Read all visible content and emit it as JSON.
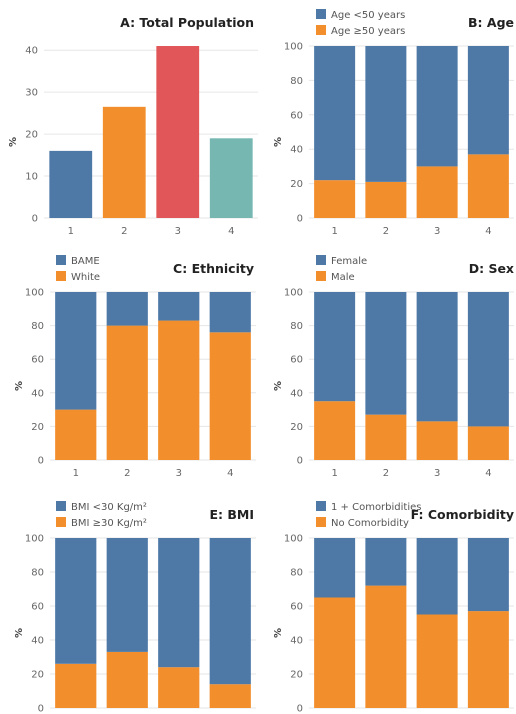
{
  "colors": {
    "blue": "#4e79a7",
    "orange": "#f28e2b",
    "red": "#e15759",
    "teal": "#76b7b2"
  },
  "chart_data": [
    {
      "id": "A",
      "type": "bar",
      "title": "A:  Total Population",
      "ylabel": "%",
      "categories": [
        "1",
        "2",
        "3",
        "4"
      ],
      "values": [
        16,
        26.5,
        41,
        19
      ],
      "bar_colors": [
        "#4e79a7",
        "#f28e2b",
        "#e15759",
        "#76b7b2"
      ],
      "ylim": [
        0,
        41
      ],
      "yticks": [
        0,
        10,
        20,
        30,
        40
      ]
    },
    {
      "id": "B",
      "type": "bar",
      "stacked": true,
      "title": "B: Age",
      "ylabel": "%",
      "categories": [
        "1",
        "2",
        "3",
        "4"
      ],
      "series": [
        {
          "name": "Age ≥50 years",
          "color": "#f28e2b",
          "values": [
            22,
            21,
            30,
            37
          ]
        },
        {
          "name": "Age <50 years",
          "color": "#4e79a7",
          "values": [
            78,
            79,
            70,
            63
          ]
        }
      ],
      "legend": [
        {
          "name": "Age <50 years",
          "color": "#4e79a7"
        },
        {
          "name": "Age ≥50 years",
          "color": "#f28e2b"
        }
      ],
      "ylim": [
        0,
        100
      ],
      "yticks": [
        0,
        20,
        40,
        60,
        80,
        100
      ]
    },
    {
      "id": "C",
      "type": "bar",
      "stacked": true,
      "title": "C:  Ethnicity",
      "ylabel": "%",
      "categories": [
        "1",
        "2",
        "3",
        "4"
      ],
      "series": [
        {
          "name": "White",
          "color": "#f28e2b",
          "values": [
            30,
            80,
            83,
            76
          ]
        },
        {
          "name": "BAME",
          "color": "#4e79a7",
          "values": [
            70,
            20,
            17,
            24
          ]
        }
      ],
      "legend": [
        {
          "name": "BAME",
          "color": "#4e79a7"
        },
        {
          "name": "White",
          "color": "#f28e2b"
        }
      ],
      "ylim": [
        0,
        100
      ],
      "yticks": [
        0,
        20,
        40,
        60,
        80,
        100
      ]
    },
    {
      "id": "D",
      "type": "bar",
      "stacked": true,
      "title": "D:  Sex",
      "ylabel": "%",
      "categories": [
        "1",
        "2",
        "3",
        "4"
      ],
      "series": [
        {
          "name": "Male",
          "color": "#f28e2b",
          "values": [
            35,
            27,
            23,
            20
          ]
        },
        {
          "name": "Female",
          "color": "#4e79a7",
          "values": [
            65,
            73,
            77,
            80
          ]
        }
      ],
      "legend": [
        {
          "name": "Female",
          "color": "#4e79a7"
        },
        {
          "name": "Male",
          "color": "#f28e2b"
        }
      ],
      "ylim": [
        0,
        100
      ],
      "yticks": [
        0,
        20,
        40,
        60,
        80,
        100
      ]
    },
    {
      "id": "E",
      "type": "bar",
      "stacked": true,
      "title": "E:  BMI",
      "ylabel": "%",
      "categories": [
        "1",
        "2",
        "3",
        "4"
      ],
      "series": [
        {
          "name": "BMI ≥30 Kg/m²",
          "color": "#f28e2b",
          "values": [
            26,
            33,
            24,
            14
          ]
        },
        {
          "name": "BMI <30 Kg/m²",
          "color": "#4e79a7",
          "values": [
            74,
            67,
            76,
            86
          ]
        }
      ],
      "legend": [
        {
          "name": "BMI <30 Kg/m²",
          "color": "#4e79a7"
        },
        {
          "name": "BMI ≥30 Kg/m²",
          "color": "#f28e2b"
        }
      ],
      "ylim": [
        0,
        100
      ],
      "yticks": [
        0,
        20,
        40,
        60,
        80,
        100
      ]
    },
    {
      "id": "F",
      "type": "bar",
      "stacked": true,
      "title": "F:  Comorbidity",
      "ylabel": "%",
      "categories": [
        "1",
        "2",
        "3",
        "4"
      ],
      "series": [
        {
          "name": "No Comorbidity",
          "color": "#f28e2b",
          "values": [
            65,
            72,
            55,
            57
          ]
        },
        {
          "name": "1 + Comorbidities",
          "color": "#4e79a7",
          "values": [
            35,
            28,
            45,
            43
          ]
        }
      ],
      "legend": [
        {
          "name": "1 + Comorbidities",
          "color": "#4e79a7"
        },
        {
          "name": "No Comorbidity",
          "color": "#f28e2b"
        }
      ],
      "ylim": [
        0,
        100
      ],
      "yticks": [
        0,
        20,
        40,
        60,
        80,
        100
      ]
    }
  ]
}
